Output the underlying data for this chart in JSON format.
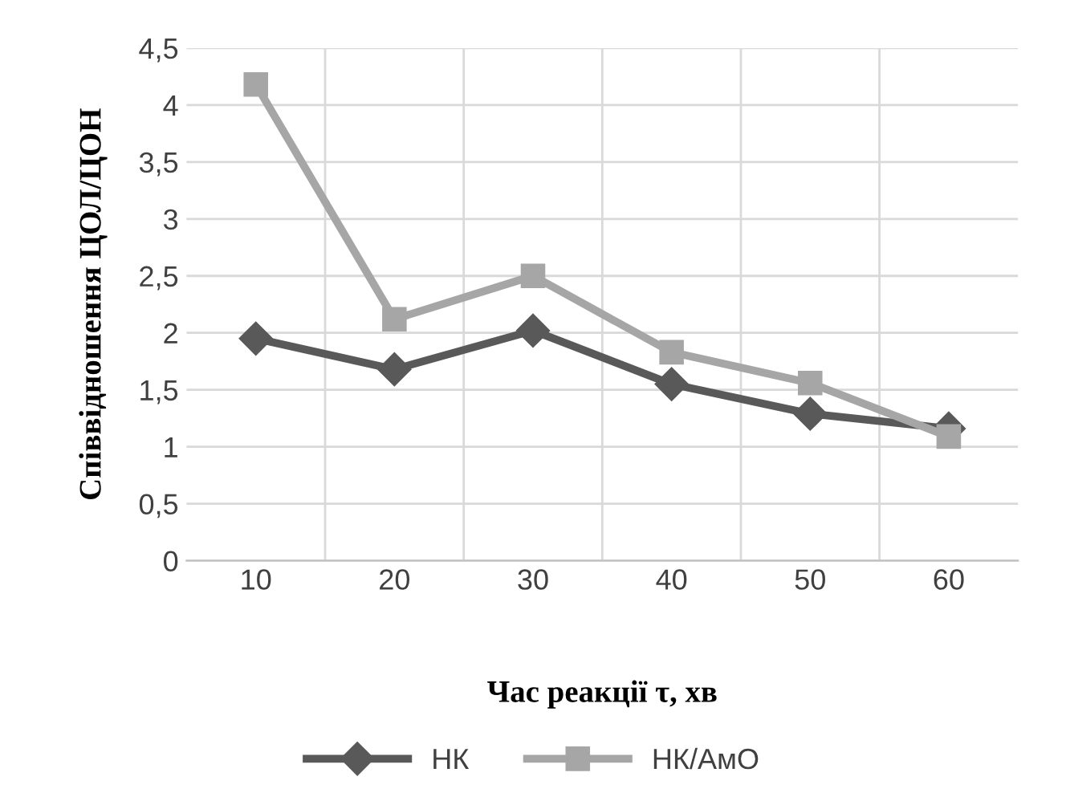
{
  "chart_data": {
    "type": "line",
    "xlabel": "Час реакції τ, хв",
    "ylabel": "Співвідношення ЦОЛ/ЦОН",
    "categories": [
      "10",
      "20",
      "30",
      "40",
      "50",
      "60"
    ],
    "series": [
      {
        "name": "НК",
        "color": "#595959",
        "marker": "diamond",
        "values": [
          1.95,
          1.68,
          2.02,
          1.55,
          1.29,
          1.16
        ]
      },
      {
        "name": "НК/АмО",
        "color": "#a6a6a6",
        "marker": "square",
        "values": [
          4.18,
          2.12,
          2.5,
          1.83,
          1.56,
          1.09
        ]
      }
    ],
    "ylim": [
      0,
      4.5
    ],
    "yticks": [
      0,
      {
        "value": 0.5,
        "label": "0,5"
      },
      1,
      {
        "value": 1.5,
        "label": "1,5"
      },
      2,
      {
        "value": 2.5,
        "label": "2,5"
      },
      3,
      {
        "value": 3.5,
        "label": "3,5"
      },
      4,
      {
        "value": 4.5,
        "label": "4,5"
      }
    ],
    "grid": true,
    "legend": "bottom",
    "line_style": "solid"
  }
}
